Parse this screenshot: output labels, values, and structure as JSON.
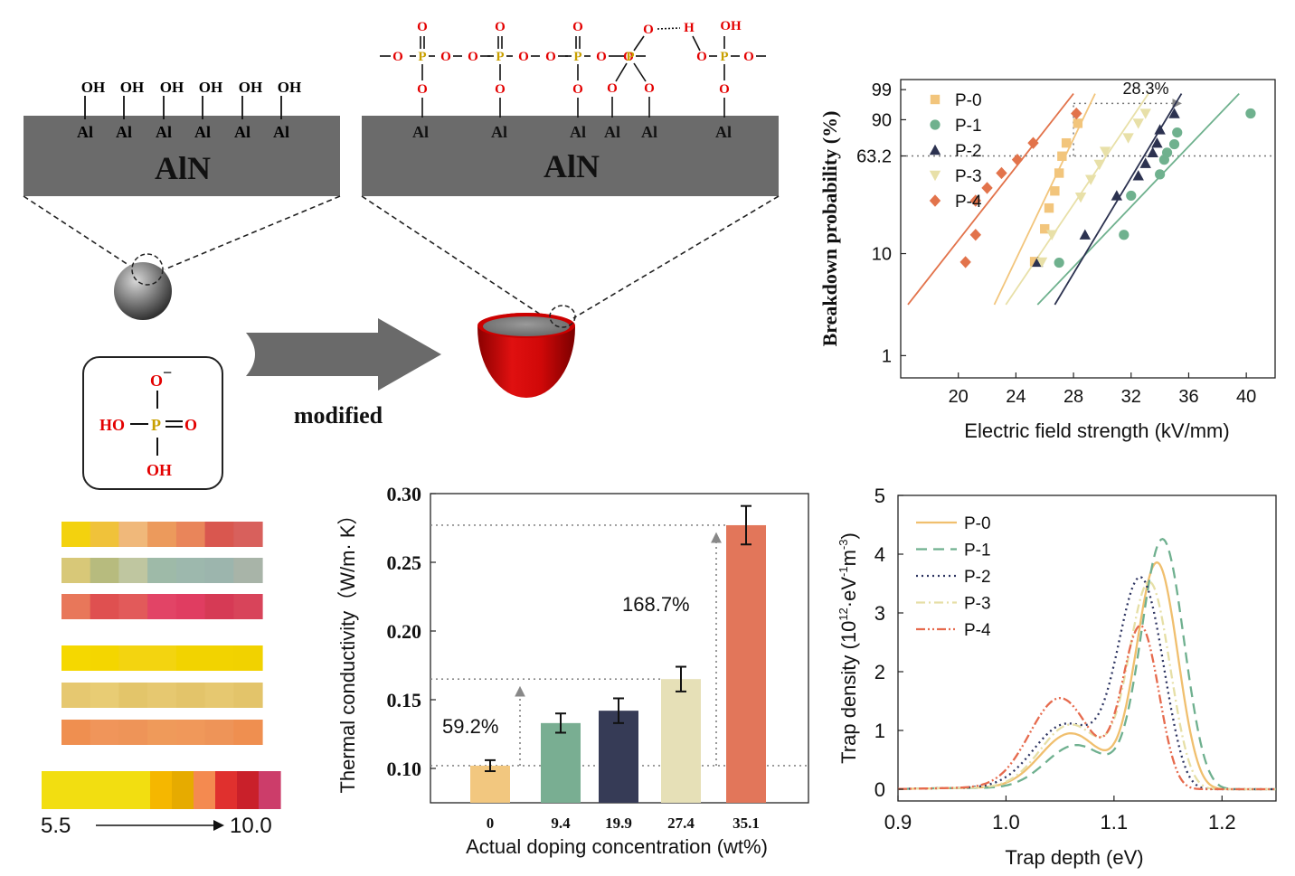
{
  "schematic": {
    "substrate_label": "AlN",
    "surface_atom": "Al",
    "hydroxyl_group": "OH",
    "oxygen": "O",
    "phosphorus": "P",
    "hydrogen": "H",
    "arrow_label": "modified",
    "phosphoric_acid": {
      "o_minus": "O",
      "charge": "−",
      "ho": "HO",
      "p": "P",
      "o_double": "O",
      "oh": "OH"
    }
  },
  "ph_scale": {
    "min_label": "5.5",
    "max_label": "10.0",
    "colors": [
      "#f2de11",
      "#f2de11",
      "#f2de11",
      "#f2de11",
      "#f2de11",
      "#f5b700",
      "#e6ab00",
      "#f48a50",
      "#e0302e",
      "#c9202a",
      "#cc3d6a"
    ],
    "strip_colors": [
      [
        "#f3d20e",
        "#f0c23a",
        "#f0b87a",
        "#ec9a5c",
        "#e9855a",
        "#d9574f",
        "#d8605c"
      ],
      [
        "#d8c878",
        "#b7bb7e",
        "#bfc6a0",
        "#9ebaa8",
        "#9db8ad",
        "#9cb5ad",
        "#a8b4a8"
      ],
      [
        "#e8775a",
        "#df5050",
        "#e25a5a",
        "#e24466",
        "#e03d61",
        "#d63a55",
        "#d8445a"
      ],
      [
        "#f5d800",
        "#f4d600",
        "#f3d410",
        "#f3d410",
        "#f2d300",
        "#f2d300",
        "#f1d200"
      ],
      [
        "#e6c870",
        "#e8cc74",
        "#e3c56a",
        "#e6c870",
        "#e3c46a",
        "#e6c870",
        "#e3c46a"
      ],
      [
        "#ef8f50",
        "#f0955a",
        "#ee9458",
        "#ef9a5a",
        "#f0985a",
        "#ee9458",
        "#ef8f50"
      ]
    ]
  },
  "chart_data": [
    {
      "type": "scatter",
      "panel": "breakdown-weibull",
      "title": "",
      "xlabel": "Electric field strength (kV/mm)",
      "ylabel": "Breakdown probability (%)",
      "xlim": [
        16,
        42
      ],
      "xticks": [
        20,
        24,
        28,
        32,
        36,
        40
      ],
      "y_scale": "weibull",
      "yticks": [
        1,
        10,
        63.2,
        90,
        99
      ],
      "reference_line_y": 63.2,
      "annotation": "28.3%",
      "legend_position": "top-left",
      "series": [
        {
          "name": "P-0",
          "marker": "square",
          "color": "#f2c57c",
          "points": [
            [
              25.3,
              8.4
            ],
            [
              26.0,
              17.0
            ],
            [
              26.3,
              26.0
            ],
            [
              26.7,
              36.0
            ],
            [
              27.0,
              49.0
            ],
            [
              27.2,
              63.0
            ],
            [
              27.5,
              74.0
            ],
            [
              28.3,
              88.0
            ]
          ],
          "fit": [
            [
              22.5,
              3.2
            ],
            [
              29.5,
              98.5
            ]
          ]
        },
        {
          "name": "P-1",
          "marker": "circle",
          "color": "#6fb18e",
          "points": [
            [
              27.0,
              8.2
            ],
            [
              31.5,
              15.0
            ],
            [
              32.0,
              33.0
            ],
            [
              34.0,
              48.0
            ],
            [
              34.3,
              60.0
            ],
            [
              34.5,
              66.0
            ],
            [
              35.0,
              73.0
            ],
            [
              35.2,
              82.0
            ],
            [
              40.3,
              93.0
            ]
          ],
          "fit": [
            [
              25.5,
              3.2
            ],
            [
              39.5,
              98.5
            ]
          ]
        },
        {
          "name": "P-2",
          "marker": "triangle",
          "color": "#2c3250",
          "points": [
            [
              25.5,
              8.3
            ],
            [
              28.8,
              15.0
            ],
            [
              31.0,
              33.0
            ],
            [
              32.5,
              47.0
            ],
            [
              33.0,
              57.0
            ],
            [
              33.5,
              66.0
            ],
            [
              33.8,
              74.0
            ],
            [
              34.0,
              84.0
            ],
            [
              35.0,
              93.0
            ]
          ],
          "fit": [
            [
              26.7,
              3.2
            ],
            [
              35.5,
              98.5
            ]
          ]
        },
        {
          "name": "P-3",
          "marker": "triangle-down",
          "color": "#e8e0a8",
          "points": [
            [
              25.8,
              8.3
            ],
            [
              26.5,
              15.0
            ],
            [
              28.5,
              32.0
            ],
            [
              29.2,
              44.0
            ],
            [
              29.8,
              56.0
            ],
            [
              30.2,
              67.0
            ],
            [
              31.8,
              78.0
            ],
            [
              32.5,
              88.0
            ],
            [
              33.0,
              93.0
            ]
          ],
          "fit": [
            [
              23.3,
              3.2
            ],
            [
              33.2,
              98.5
            ]
          ]
        },
        {
          "name": "P-4",
          "marker": "diamond",
          "color": "#e2734b",
          "points": [
            [
              20.5,
              8.3
            ],
            [
              21.2,
              15.0
            ],
            [
              21.2,
              30.0
            ],
            [
              22.0,
              38.0
            ],
            [
              23.0,
              49.0
            ],
            [
              24.1,
              60.0
            ],
            [
              25.2,
              74.0
            ],
            [
              28.2,
              93.0
            ]
          ],
          "fit": [
            [
              16.5,
              3.2
            ],
            [
              28.0,
              98.5
            ]
          ]
        }
      ]
    },
    {
      "type": "bar",
      "panel": "thermal-conductivity",
      "title": "",
      "xlabel": "Actual doping concentration (wt%)",
      "ylabel": "Thermal conductivity（W/m· K）",
      "categories": [
        "0",
        "9.4",
        "19.9",
        "27.4",
        "35.1"
      ],
      "values": [
        0.102,
        0.133,
        0.142,
        0.165,
        0.277
      ],
      "errors": [
        0.004,
        0.007,
        0.009,
        0.009,
        0.014
      ],
      "colors": [
        "#f2c77f",
        "#79ae92",
        "#363b56",
        "#e6e0b7",
        "#e2765a"
      ],
      "ylim": [
        0.075,
        0.3
      ],
      "yticks": [
        "0.10",
        "0.15",
        "0.20",
        "0.25",
        "0.30"
      ],
      "annotations": [
        "59.2%",
        "168.7%"
      ]
    },
    {
      "type": "line",
      "panel": "trap-distribution",
      "title": "",
      "xlabel": "Trap depth (eV)",
      "ylabel_prefix": "Trap density (10",
      "ylabel_exp1": "12",
      "ylabel_mid": "·eV",
      "ylabel_exp2": "-1",
      "ylabel_m": "m",
      "ylabel_exp3": "-3",
      "ylabel_suffix": ")",
      "xlim": [
        0.9,
        1.25
      ],
      "ylim": [
        -0.2,
        5.0
      ],
      "xticks": [
        "0.9",
        "1.0",
        "1.1",
        "1.2"
      ],
      "yticks": [
        "0",
        "1",
        "2",
        "3",
        "4",
        "5"
      ],
      "legend_position": "top-left",
      "series": [
        {
          "name": "P-0",
          "color": "#f0bf6e",
          "dash": "solid",
          "low_peak": [
            1.06,
            0.95,
            0.04
          ],
          "high_peak": [
            1.14,
            3.85,
            0.027
          ],
          "onset": [
            1.19,
            0.008
          ]
        },
        {
          "name": "P-1",
          "color": "#6fb08f",
          "dash": "long-dash",
          "low_peak": [
            1.065,
            0.75,
            0.04
          ],
          "high_peak": [
            1.145,
            4.25,
            0.028
          ],
          "onset": [
            1.198,
            0.008
          ]
        },
        {
          "name": "P-2",
          "color": "#2c3360",
          "dash": "dot",
          "low_peak": [
            1.055,
            1.1,
            0.042
          ],
          "high_peak": [
            1.125,
            3.55,
            0.03
          ],
          "onset": [
            1.172,
            0.008
          ]
        },
        {
          "name": "P-3",
          "color": "#e6dfa6",
          "dash": "dash-dot",
          "low_peak": [
            1.06,
            1.1,
            0.04
          ],
          "high_peak": [
            1.133,
            3.5,
            0.027
          ],
          "onset": [
            1.182,
            0.008
          ]
        },
        {
          "name": "P-4",
          "color": "#e66a4d",
          "dash": "dash-dot-dot",
          "low_peak": [
            1.05,
            1.55,
            0.04
          ],
          "high_peak": [
            1.125,
            2.75,
            0.024
          ],
          "onset": [
            1.168,
            0.008
          ]
        }
      ]
    }
  ]
}
